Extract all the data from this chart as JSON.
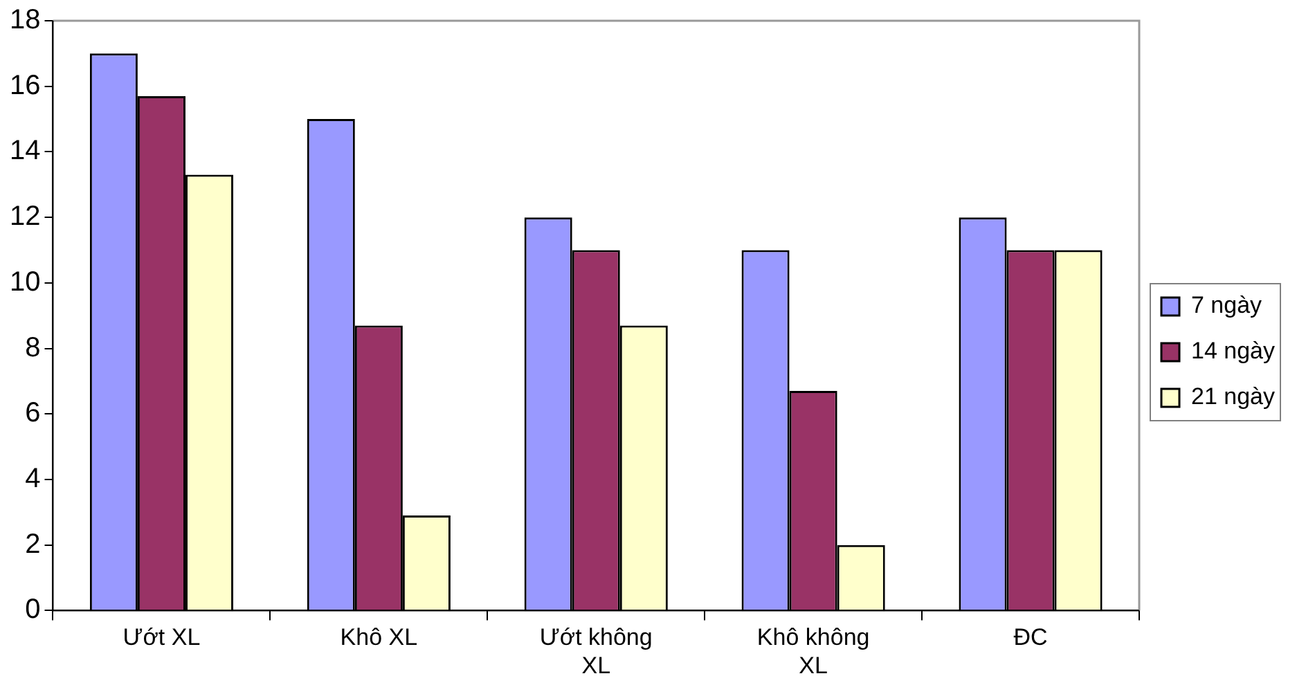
{
  "chart_data": {
    "type": "bar",
    "categories": [
      "Ướt XL",
      "Khô XL",
      "Ướt không XL",
      "Khô không XL",
      "ĐC"
    ],
    "series": [
      {
        "name": "7 ngày",
        "color": "#9999ff",
        "values": [
          17,
          15,
          12,
          11,
          12
        ]
      },
      {
        "name": "14 ngày",
        "color": "#993366",
        "values": [
          15.7,
          8.7,
          11,
          6.7,
          11
        ]
      },
      {
        "name": "21 ngày",
        "color": "#ffffcc",
        "values": [
          13.3,
          2.9,
          8.7,
          2,
          11
        ]
      }
    ],
    "ylim": [
      0,
      18
    ],
    "yticks": [
      0,
      2,
      4,
      6,
      8,
      10,
      12,
      14,
      16,
      18
    ],
    "grid": false,
    "legend": "right"
  }
}
